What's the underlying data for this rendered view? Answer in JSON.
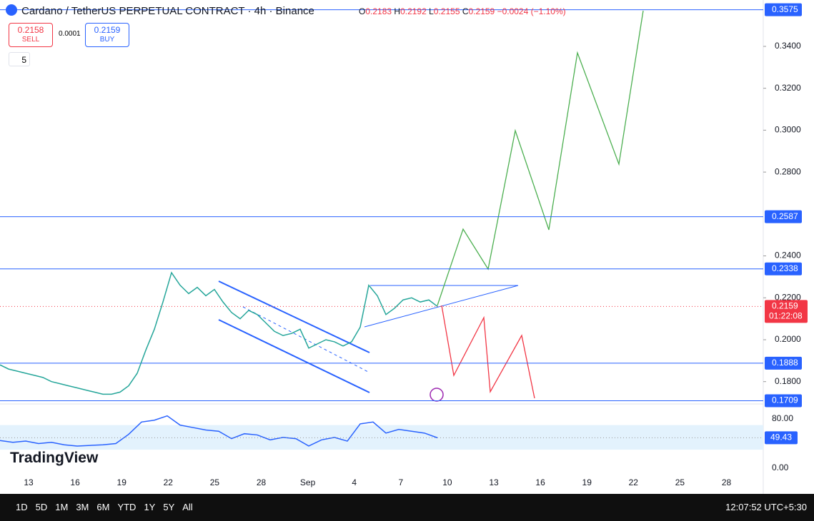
{
  "header": {
    "symbol": "Cardano / TetherUS PERPETUAL CONTRACT · 4h · Binance",
    "o_label": "O",
    "o": "0.2183",
    "h_label": "H",
    "h": "0.2192",
    "l_label": "L",
    "l": "0.2155",
    "c_label": "C",
    "c": "0.2159",
    "change": "−0.0024 (−1.10%)"
  },
  "trade": {
    "sell_price": "0.2158",
    "sell": "SELL",
    "spread": "0.0001",
    "buy_price": "0.2159",
    "buy": "BUY",
    "indicators": "5"
  },
  "price_axis": {
    "ylim": [
      0.17,
      0.36
    ],
    "yticks": [
      {
        "value": 0.18,
        "label": "0.1800"
      },
      {
        "value": 0.2,
        "label": "0.2000"
      },
      {
        "value": 0.22,
        "label": "0.2200"
      },
      {
        "value": 0.24,
        "label": "0.2400"
      },
      {
        "value": 0.28,
        "label": "0.2800"
      },
      {
        "value": 0.3,
        "label": "0.3000"
      },
      {
        "value": 0.32,
        "label": "0.3200"
      },
      {
        "value": 0.34,
        "label": "0.3400"
      }
    ],
    "levels": [
      {
        "value": 0.3575,
        "label": "0.3575"
      },
      {
        "value": 0.2587,
        "label": "0.2587"
      },
      {
        "value": 0.2338,
        "label": "0.2338"
      },
      {
        "value": 0.1888,
        "label": "0.1888"
      },
      {
        "value": 0.1709,
        "label": "0.1709"
      }
    ],
    "current": {
      "value": 0.2159,
      "label": "0.2159",
      "countdown": "01:22:08"
    }
  },
  "price_closes": [
    0.188,
    0.186,
    0.185,
    0.184,
    0.183,
    0.182,
    0.18,
    0.179,
    0.178,
    0.177,
    0.176,
    0.175,
    0.174,
    0.174,
    0.175,
    0.178,
    0.184,
    0.195,
    0.205,
    0.218,
    0.232,
    0.226,
    0.222,
    0.225,
    0.221,
    0.224,
    0.218,
    0.213,
    0.21,
    0.214,
    0.212,
    0.208,
    0.204,
    0.202,
    0.203,
    0.205,
    0.196,
    0.198,
    0.2,
    0.199,
    0.197,
    0.199,
    0.206,
    0.226,
    0.221,
    0.212,
    0.215,
    0.219,
    0.22,
    0.218,
    0.219,
    0.2159
  ],
  "rsi": {
    "ylim": [
      0,
      100
    ],
    "yticks": [
      {
        "value": 0,
        "label": "0.00"
      },
      {
        "value": 80,
        "label": "80.00"
      }
    ],
    "current": {
      "value": 49.43,
      "label": "49.43"
    },
    "values": [
      45,
      42,
      44,
      40,
      42,
      38,
      36,
      37,
      38,
      40,
      55,
      75,
      78,
      85,
      70,
      66,
      62,
      60,
      48,
      56,
      54,
      46,
      50,
      48,
      36,
      46,
      50,
      44,
      72,
      75,
      57,
      63,
      60,
      57,
      49.43
    ]
  },
  "time_axis": [
    "13",
    "16",
    "19",
    "22",
    "25",
    "28",
    "Sep",
    "4",
    "7",
    "10",
    "13",
    "16",
    "19",
    "22",
    "25",
    "28"
  ],
  "logo": "TradingView",
  "toolbar": {
    "ranges": [
      "1D",
      "5D",
      "1M",
      "3M",
      "6M",
      "YTD",
      "1Y",
      "5Y",
      "All"
    ],
    "clock": "12:07:52 UTC+5:30"
  }
}
